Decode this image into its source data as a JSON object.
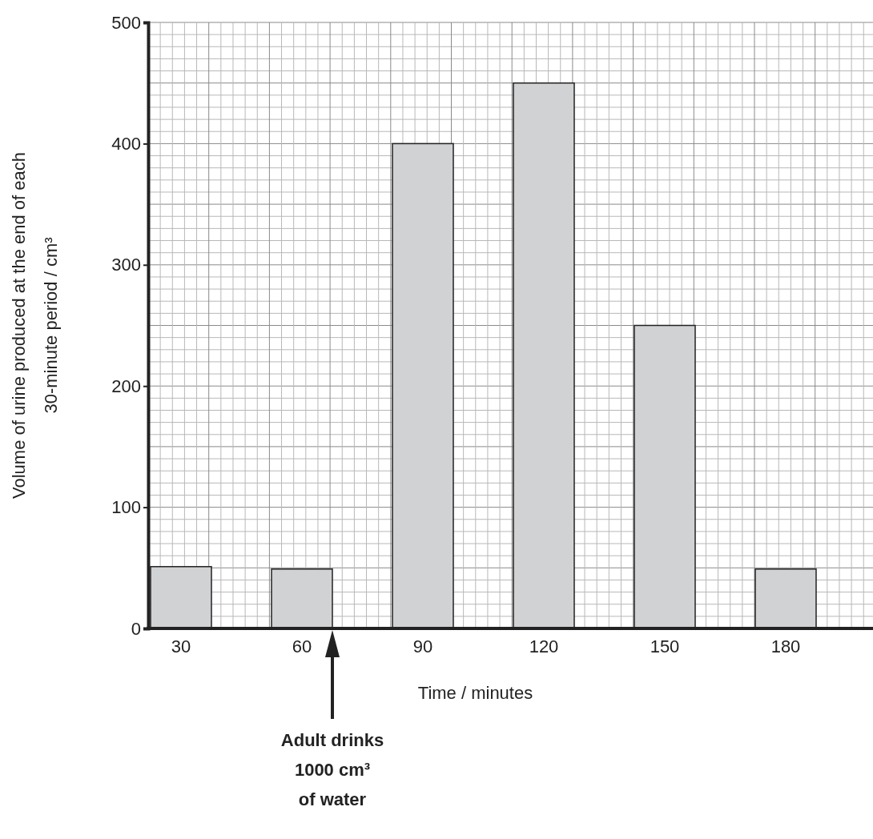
{
  "chart_data": {
    "type": "bar",
    "categories": [
      "30",
      "60",
      "90",
      "120",
      "150",
      "180"
    ],
    "values": [
      51,
      49,
      400,
      450,
      250,
      49
    ],
    "color": "#d1d2d4",
    "xlabel": "Time / minutes",
    "ylabel": "Volume of urine produced at the end of each\n30-minute period / cm³",
    "ylim": [
      0,
      500
    ],
    "yticks": [
      0,
      100,
      200,
      300,
      400,
      500
    ],
    "grid": true,
    "annotations": [
      "Adult drinks\n1000 cm³\nof water"
    ]
  }
}
